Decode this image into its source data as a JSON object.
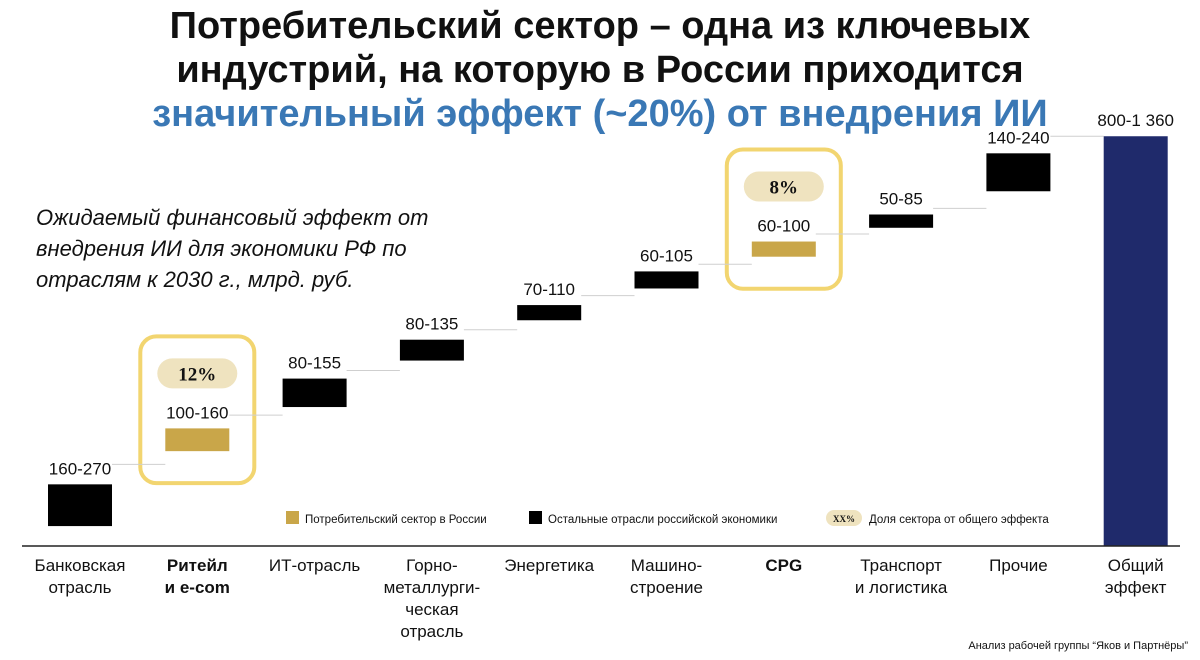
{
  "title": {
    "line1": "Потребительский сектор – одна из ключевых",
    "line2": "индустрий, на которую в России приходится",
    "line3": "значительный эффект (~20%) от внедрения ИИ"
  },
  "subtitle": "Ожидаемый финансовый эффект от внедрения ИИ для экономики РФ по отраслям к 2030 г., млрд. руб.",
  "source": "Анализ рабочей группы “Яков и Партнёры”",
  "colors": {
    "consumer": "#c9a649",
    "other": "#000000",
    "total": "#1f2a6b",
    "highlight_border": "#f2d570",
    "share_badge": "#efe3bf"
  },
  "chart_data": {
    "type": "bar",
    "subtype": "waterfall",
    "unit": "млрд. руб.",
    "categories": [
      [
        "Банковская",
        "отрасль"
      ],
      [
        "Ритейл",
        "и e-com"
      ],
      [
        "ИТ-отрасль"
      ],
      [
        "Горно-",
        "металлурги-",
        "ческая",
        "отрасль"
      ],
      [
        "Энергетика"
      ],
      [
        "Машино-",
        "строение"
      ],
      [
        "CPG"
      ],
      [
        "Транспорт",
        "и логистика"
      ],
      [
        "Прочие"
      ],
      [
        "Общий",
        "эффект"
      ]
    ],
    "bold_categories": [
      1,
      6
    ],
    "value_labels": [
      "160-270",
      "100-160",
      "80-155",
      "80-135",
      "70-110",
      "60-105",
      "60-100",
      "50-85",
      "140-240",
      "800-1 360"
    ],
    "values": [
      [
        160,
        270
      ],
      [
        100,
        160
      ],
      [
        80,
        155
      ],
      [
        80,
        135
      ],
      [
        70,
        110
      ],
      [
        60,
        105
      ],
      [
        60,
        100
      ],
      [
        50,
        85
      ],
      [
        140,
        240
      ],
      [
        800,
        1360
      ]
    ],
    "sector": [
      "other",
      "consumer",
      "other",
      "other",
      "other",
      "other",
      "consumer",
      "other",
      "other",
      "total"
    ],
    "highlighted": [
      {
        "index": 1,
        "share": "12%"
      },
      {
        "index": 6,
        "share": "8%"
      }
    ],
    "legend": {
      "consumer": "Потребительский сектор в России",
      "other": "Остальные отрасли российской экономики",
      "share_badge": "XX%",
      "share": "Доля сектора от общего эффекта"
    }
  }
}
